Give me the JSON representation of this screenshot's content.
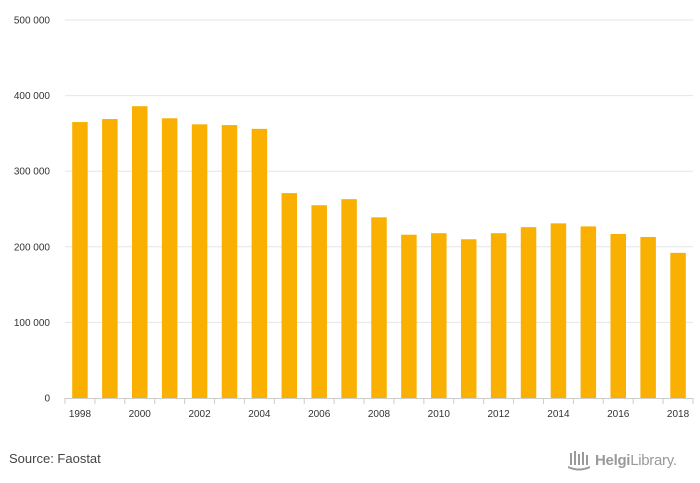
{
  "chart_data": {
    "type": "bar",
    "x": [
      1998,
      1999,
      2000,
      2001,
      2002,
      2003,
      2004,
      2005,
      2006,
      2007,
      2008,
      2009,
      2010,
      2011,
      2012,
      2013,
      2014,
      2015,
      2016,
      2017,
      2018
    ],
    "values": [
      365000,
      369000,
      386000,
      370000,
      362000,
      361000,
      356000,
      271000,
      255000,
      263000,
      239000,
      216000,
      218000,
      210000,
      218000,
      226000,
      231000,
      227000,
      217000,
      213000,
      192000
    ],
    "x_tick_labels": [
      "1998",
      "2000",
      "2002",
      "2004",
      "2006",
      "2008",
      "2010",
      "2012",
      "2014",
      "2016",
      "2018"
    ],
    "y_ticks": [
      0,
      100000,
      200000,
      300000,
      400000,
      500000
    ],
    "y_tick_labels": [
      "0",
      "100 000",
      "200 000",
      "300 000",
      "400 000",
      "500 000"
    ],
    "ylim": [
      0,
      500000
    ],
    "title": "",
    "xlabel": "",
    "ylabel": "",
    "grid": true,
    "bar_color": "#f9b000",
    "gridline_color": "#e6e6e6"
  },
  "footer": {
    "source": "Source: Faostat",
    "logo_bold": "Helgi",
    "logo_rest": "Library."
  }
}
